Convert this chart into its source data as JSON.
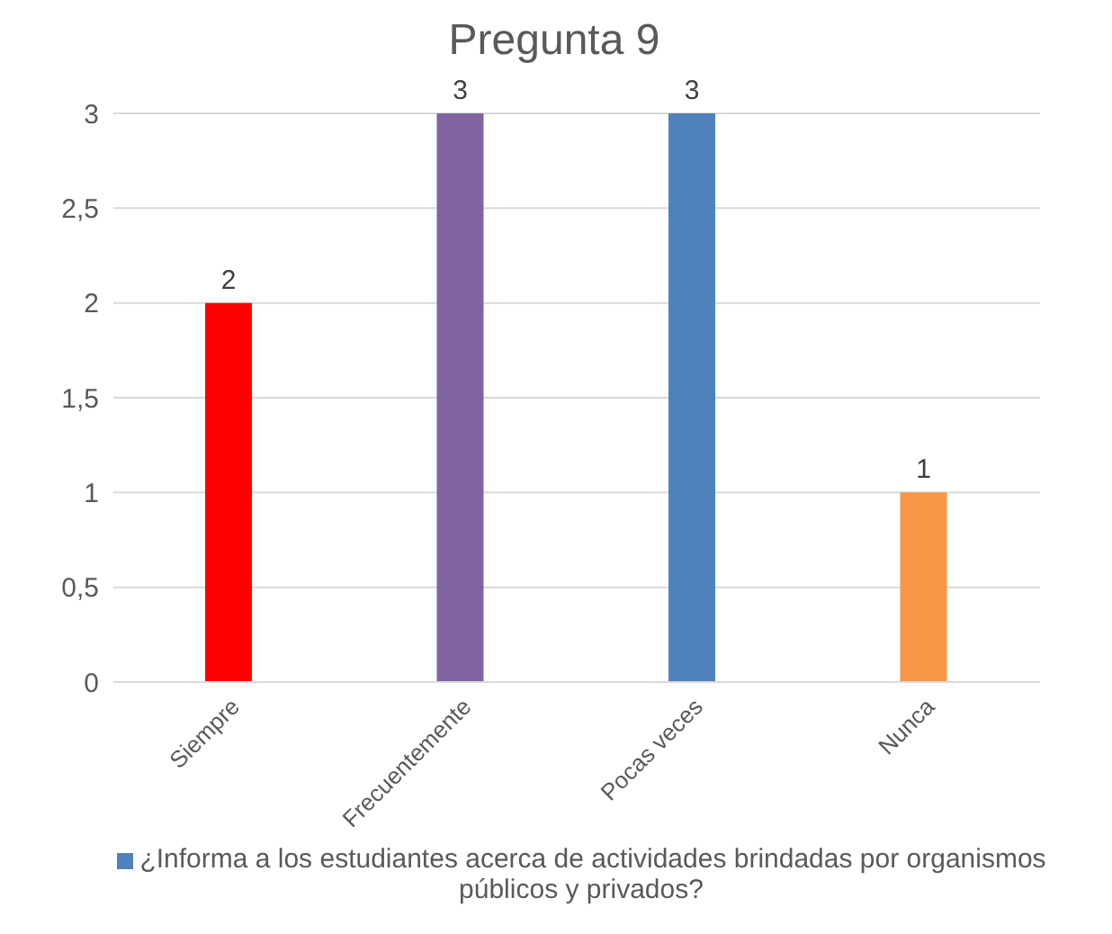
{
  "chart_data": {
    "type": "bar",
    "title": "Pregunta 9",
    "categories": [
      "Siempre",
      "Frecuentemente",
      "Pocas veces",
      "Nunca"
    ],
    "series": [
      {
        "name": "¿Informa a los estudiantes acerca de actividades brindadas por organismos públicos y privados?",
        "color": "#4f81bd",
        "colors": [
          "#ff0000",
          "#8064a2",
          "#4f81bd",
          "#f79646"
        ],
        "values": [
          2,
          3,
          3,
          1
        ]
      }
    ],
    "ylim": [
      0,
      3
    ],
    "yticks": [
      0,
      {
        "value": 0.5,
        "label": "0,5"
      },
      1,
      {
        "value": 1.5,
        "label": "1,5"
      },
      2,
      {
        "value": 2.5,
        "label": "2,5"
      },
      3
    ],
    "grid": "y",
    "legend": "bottom",
    "data_labels": true
  }
}
